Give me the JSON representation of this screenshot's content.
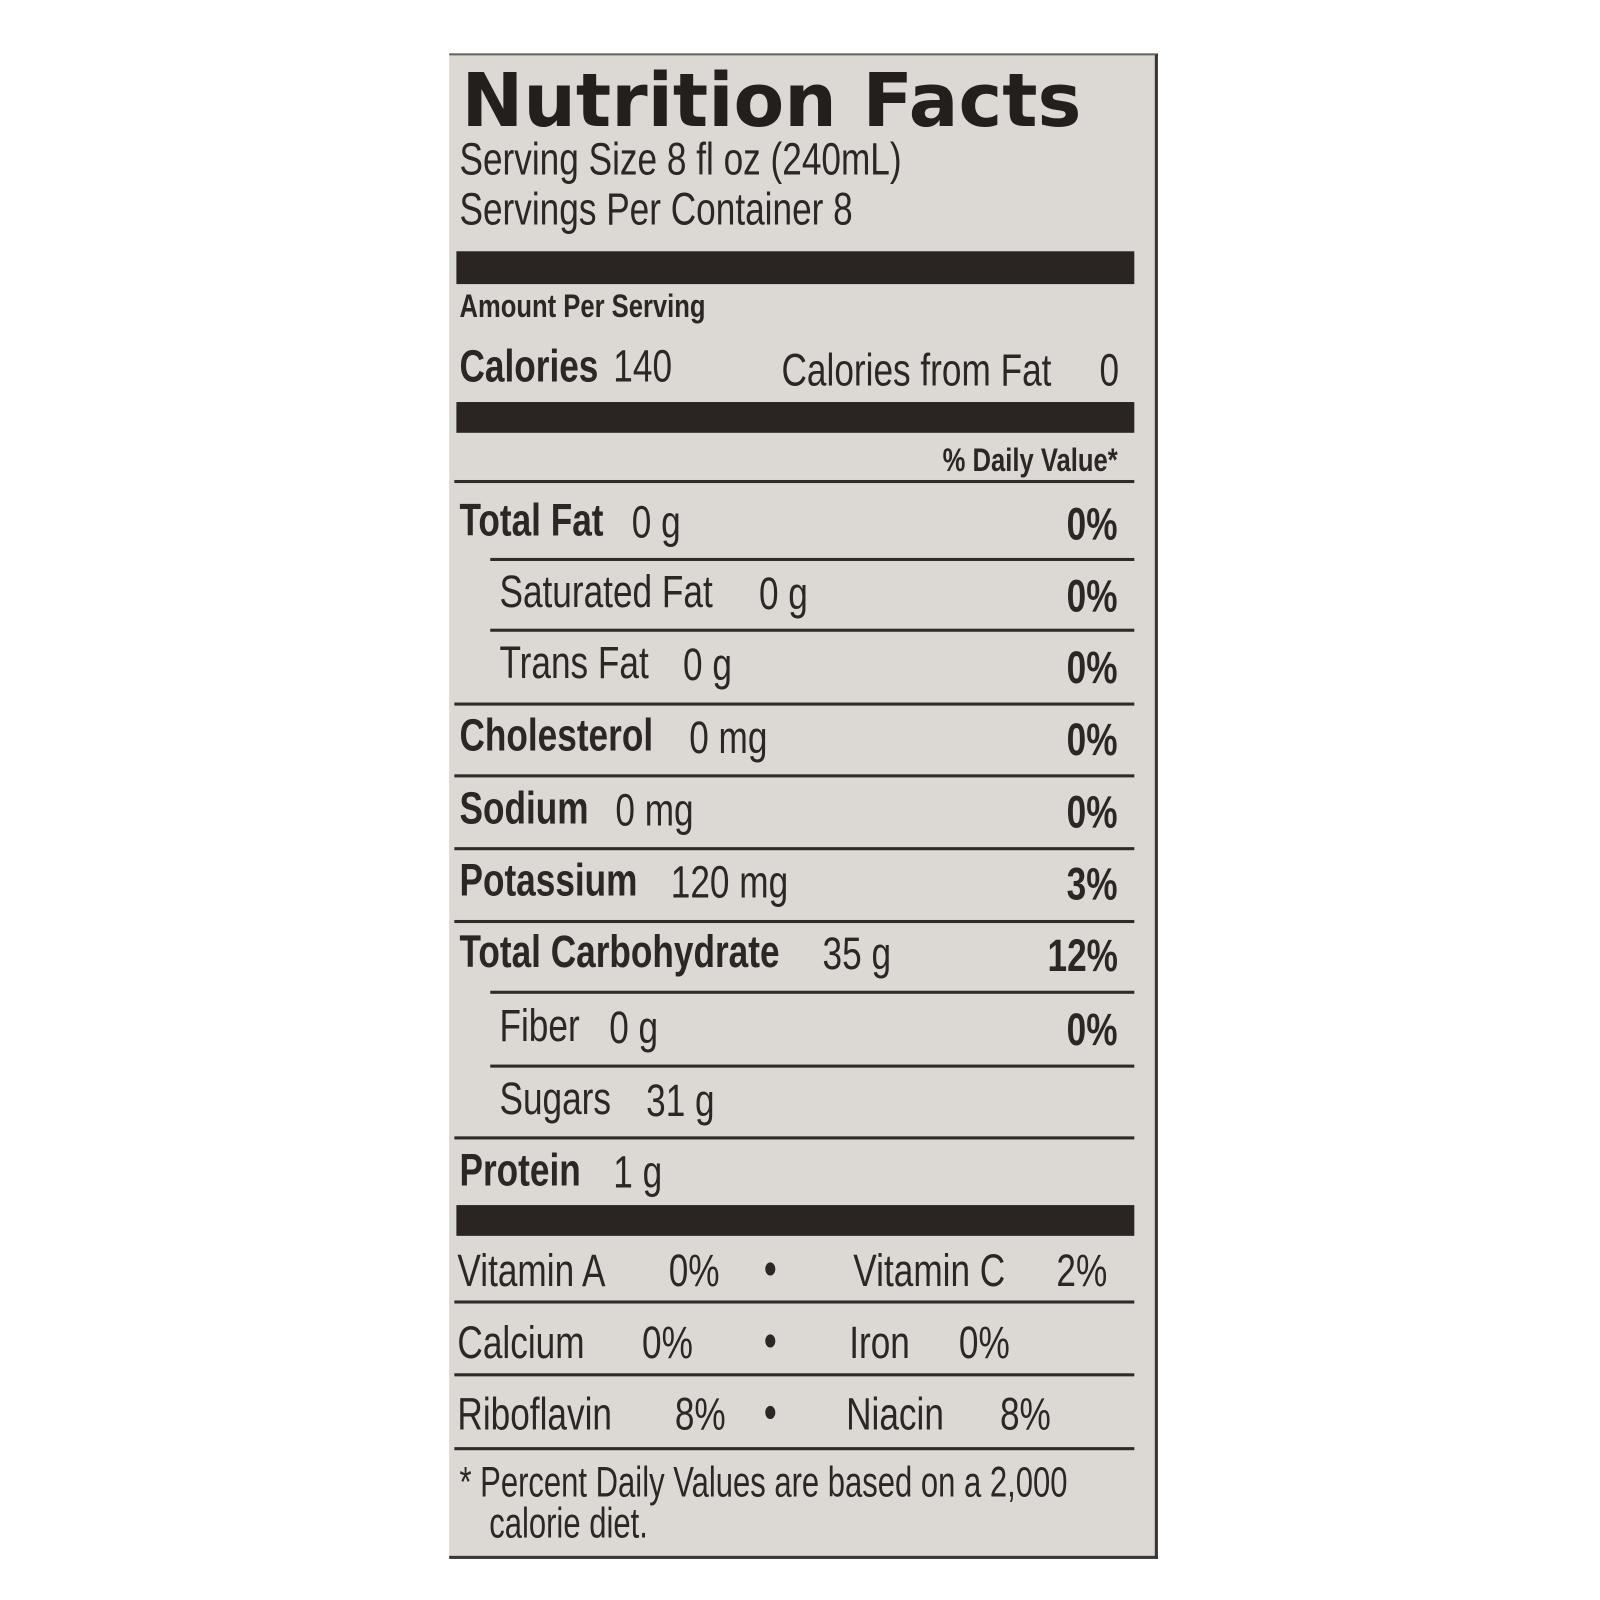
{
  "title": "Nutrition Facts",
  "serving_size": "Serving Size  8 fl oz (240mL)",
  "servings_per_container": "Servings Per Container  8",
  "amount_per_serving": "Amount Per Serving",
  "calories": {
    "label": "Calories",
    "value": "140",
    "from_fat_label": "Calories from Fat",
    "from_fat_value": "0"
  },
  "daily_value_header": "% Daily Value*",
  "nutrients": [
    {
      "name": "Total Fat",
      "amount": "0 g",
      "dv": "0%"
    },
    {
      "name": "Saturated Fat",
      "amount": "0 g",
      "dv": "0%"
    },
    {
      "name": "Trans Fat",
      "amount": "0 g",
      "dv": "0%"
    },
    {
      "name": "Cholesterol",
      "amount": "0 mg",
      "dv": "0%"
    },
    {
      "name": "Sodium",
      "amount": "0 mg",
      "dv": "0%"
    },
    {
      "name": "Potassium",
      "amount": "120 mg",
      "dv": "3%"
    },
    {
      "name": "Total Carbohydrate",
      "amount": "35 g",
      "dv": "12%"
    },
    {
      "name": "Fiber",
      "amount": "0 g",
      "dv": "0%"
    },
    {
      "name": "Sugars",
      "amount": "31 g"
    },
    {
      "name": "Protein",
      "amount": "1 g"
    }
  ],
  "vitamins": [
    {
      "name": "Vitamin A",
      "dv": "0%"
    },
    {
      "name": "Vitamin C",
      "dv": "2%"
    },
    {
      "name": "Calcium",
      "dv": "0%"
    },
    {
      "name": "Iron",
      "dv": "0%"
    },
    {
      "name": "Riboflavin",
      "dv": "8%"
    },
    {
      "name": "Niacin",
      "dv": "8%"
    }
  ],
  "bullet": "•",
  "footnote_line1": "* Percent Daily Values are based on a 2,000",
  "footnote_line2": "calorie diet.",
  "colors": {
    "background": "#dcd9d4",
    "ink": "#2b2725"
  }
}
